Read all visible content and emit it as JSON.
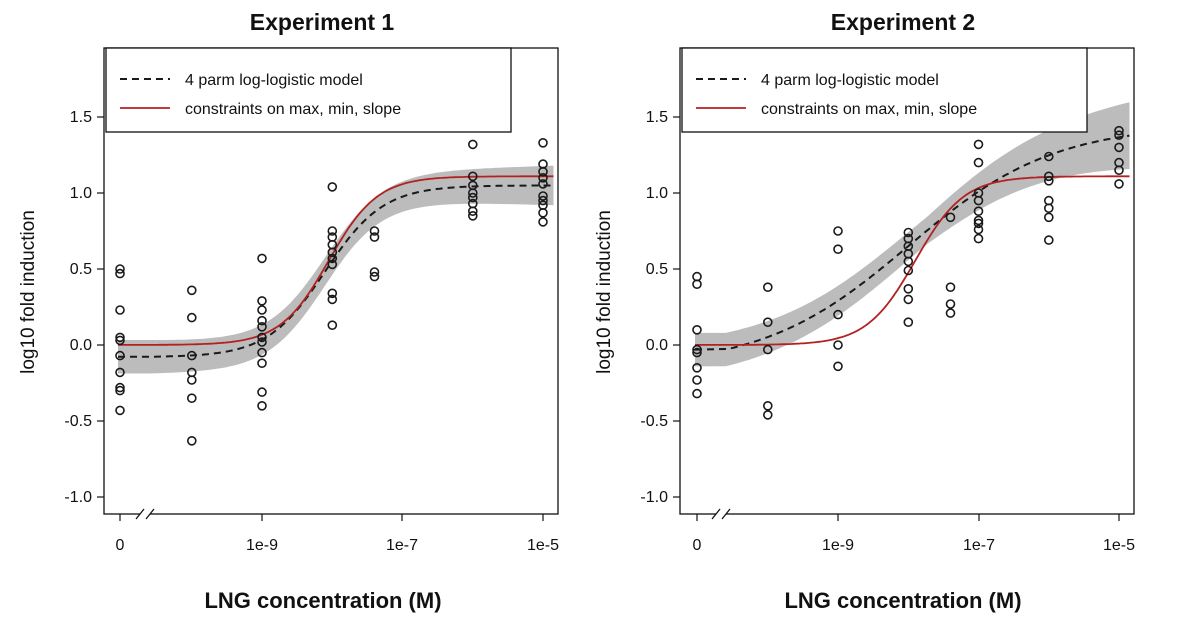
{
  "colors": {
    "band": "#bcbcbc",
    "constrained": "#b22222",
    "model": "#1a1a1a",
    "points": "#1a1a1a",
    "axis": "#111111"
  },
  "chart_data": [
    {
      "type": "scatter",
      "title": "Experiment 1",
      "xlabel": "LNG concentration (M)",
      "ylabel": "log10 fold induction",
      "x_ticks": [
        "0",
        "1e-9",
        "1e-7",
        "1e-5"
      ],
      "y_ticks": [
        "-1.0",
        "-0.5",
        "0.0",
        "0.5",
        "1.0",
        "1.5"
      ],
      "x_scale": "log10 concentration with axis break; 0 shown at left",
      "ylim": [
        -1.0,
        1.6
      ],
      "legend": {
        "position": "top",
        "entries": [
          "4 parm log-logistic model",
          "constraints on max, min, slope"
        ]
      },
      "grid": false,
      "points": [
        {
          "x": 0,
          "y": [
            0.5,
            0.47,
            0.23,
            0.05,
            0.03,
            -0.07,
            -0.18,
            -0.28,
            -0.3,
            -0.43
          ]
        },
        {
          "x": 1e-10,
          "y": [
            0.36,
            0.18,
            -0.07,
            -0.18,
            -0.23,
            -0.35,
            -0.63
          ]
        },
        {
          "x": 1e-09,
          "y": [
            0.57,
            0.29,
            0.23,
            0.16,
            0.12,
            0.05,
            0.02,
            -0.05,
            -0.12,
            -0.31,
            -0.4
          ]
        },
        {
          "x": 1e-08,
          "y": [
            1.04,
            0.75,
            0.71,
            0.66,
            0.61,
            0.57,
            0.53,
            0.34,
            0.3,
            0.13
          ]
        },
        {
          "x": 4e-08,
          "y": [
            0.75,
            0.71,
            0.48,
            0.45
          ]
        },
        {
          "x": 1e-06,
          "y": [
            1.32,
            1.11,
            1.05,
            1.0,
            0.97,
            0.93,
            0.88,
            0.85
          ]
        },
        {
          "x": 1e-05,
          "y": [
            1.33,
            1.19,
            1.14,
            1.1,
            1.06,
            0.98,
            0.95,
            0.92,
            0.87,
            0.81
          ]
        }
      ],
      "series": [
        {
          "name": "4 parm log-logistic model",
          "style": "dashed",
          "bottom": -0.08,
          "top": 1.05,
          "ec50_log10": -8.1,
          "slope": 1.05
        },
        {
          "name": "constraints on max, min, slope",
          "style": "solid",
          "bottom": 0.0,
          "top": 1.11,
          "ec50_log10": -8.05,
          "slope": 1.25
        }
      ],
      "confidence_band_halfwidth": {
        "low": 0.11,
        "mid": 0.09,
        "high": 0.13
      }
    },
    {
      "type": "scatter",
      "title": "Experiment 2",
      "xlabel": "LNG concentration (M)",
      "ylabel": "log10 fold induction",
      "x_ticks": [
        "0",
        "1e-9",
        "1e-7",
        "1e-5"
      ],
      "y_ticks": [
        "-1.0",
        "-0.5",
        "0.0",
        "0.5",
        "1.0",
        "1.5"
      ],
      "x_scale": "log10 concentration with axis break; 0 shown at left",
      "ylim": [
        -1.0,
        1.6
      ],
      "legend": {
        "position": "top",
        "entries": [
          "4 parm log-logistic model",
          "constraints on max, min, slope"
        ]
      },
      "grid": false,
      "points": [
        {
          "x": 0,
          "y": [
            0.45,
            0.4,
            0.1,
            -0.03,
            -0.05,
            -0.15,
            -0.23,
            -0.32
          ]
        },
        {
          "x": 1e-10,
          "y": [
            0.38,
            0.15,
            -0.03,
            -0.4,
            -0.46
          ]
        },
        {
          "x": 1e-09,
          "y": [
            0.75,
            0.63,
            0.2,
            0.0,
            -0.14
          ]
        },
        {
          "x": 1e-08,
          "y": [
            0.74,
            0.7,
            0.65,
            0.6,
            0.55,
            0.49,
            0.37,
            0.3,
            0.15
          ]
        },
        {
          "x": 4e-08,
          "y": [
            0.84,
            0.38,
            0.27,
            0.21
          ]
        },
        {
          "x": 1e-07,
          "y": [
            1.32,
            1.2,
            1.0,
            0.95,
            0.88,
            0.82,
            0.8,
            0.76,
            0.7
          ]
        },
        {
          "x": 1e-06,
          "y": [
            1.24,
            1.11,
            1.08,
            0.95,
            0.9,
            0.84,
            0.69
          ]
        },
        {
          "x": 1e-05,
          "y": [
            1.41,
            1.38,
            1.3,
            1.2,
            1.15,
            1.06
          ]
        }
      ],
      "series": [
        {
          "name": "4 parm log-logistic model",
          "style": "dashed",
          "bottom": -0.15,
          "top": 1.45,
          "ec50_log10": -8.0,
          "slope": 0.42
        },
        {
          "name": "constraints on max, min, slope",
          "style": "solid",
          "bottom": 0.0,
          "top": 1.11,
          "ec50_log10": -7.9,
          "slope": 1.25
        }
      ],
      "confidence_band_halfwidth": {
        "low": 0.11,
        "mid": 0.09,
        "high": 0.22
      }
    }
  ]
}
